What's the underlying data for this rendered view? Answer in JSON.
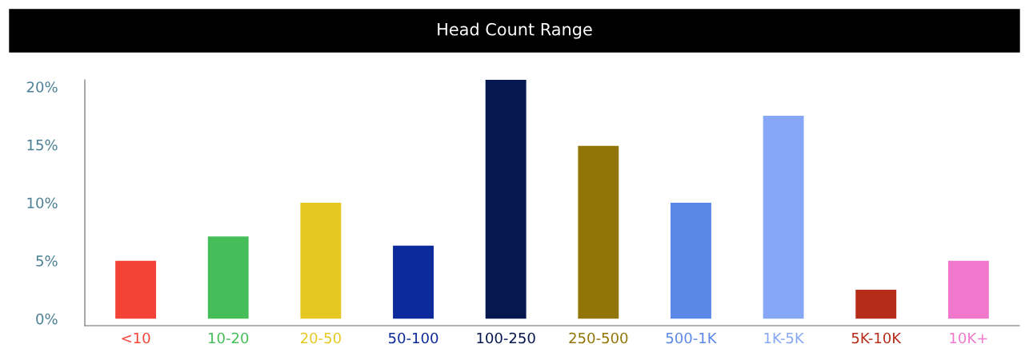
{
  "chart_data": {
    "type": "bar",
    "title": "Head Count Range",
    "categories": [
      "<10",
      "10-20",
      "20-50",
      "50-100",
      "100-250",
      "250-500",
      "500-1K",
      "1K-5K",
      "5K-10K",
      "10K+"
    ],
    "values": [
      5.0,
      7.1,
      10.0,
      6.3,
      20.6,
      14.9,
      10.0,
      17.5,
      2.5,
      5.0
    ],
    "colors": [
      "#f44336",
      "#45be5a",
      "#e5c822",
      "#0c2a9c",
      "#061750",
      "#917507",
      "#5a88e8",
      "#85a7f5",
      "#b52c19",
      "#ef78cc"
    ],
    "ylim": [
      -0.6,
      20.6
    ],
    "yticks": [
      {
        "value": 0,
        "label": "0%"
      },
      {
        "value": 5,
        "label": "5%"
      },
      {
        "value": 10,
        "label": "10%"
      },
      {
        "value": 15,
        "label": "15%"
      },
      {
        "value": 20,
        "label": "20%"
      }
    ],
    "grid": false,
    "legend": false
  }
}
